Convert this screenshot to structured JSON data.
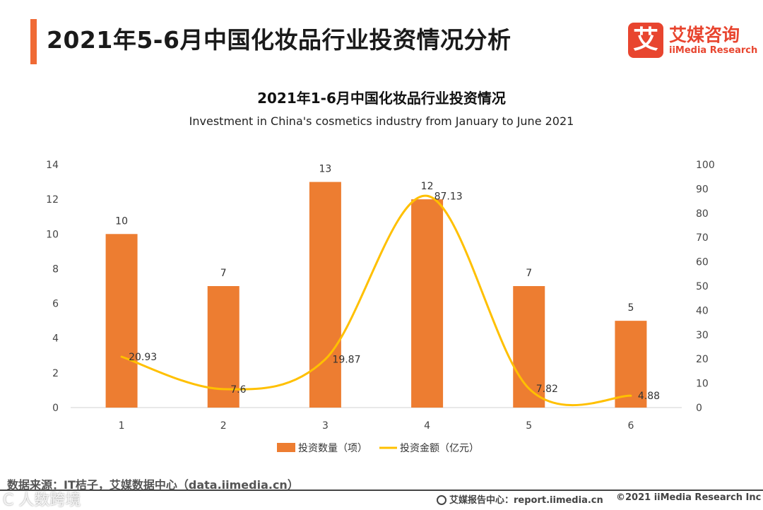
{
  "page": {
    "title": "2021年5-6月中国化妆品行业投资情况分析",
    "accent_color": "#F06A35"
  },
  "logo": {
    "mark": "艾",
    "name_cn": "艾媒咨询",
    "name_en": "iiMedia Research",
    "color": "#E8452F"
  },
  "chart_data": {
    "type": "bar",
    "title": "2021年1-6月中国化妆品行业投资情况",
    "subtitle": "Investment in China's cosmetics industry from January to June 2021",
    "categories": [
      "1",
      "2",
      "3",
      "4",
      "5",
      "6"
    ],
    "left_axis": {
      "min": 0,
      "max": 14,
      "ticks": [
        "0",
        "2",
        "4",
        "6",
        "8",
        "10",
        "12",
        "14"
      ]
    },
    "right_axis": {
      "min": 0,
      "max": 100,
      "ticks": [
        "0",
        "10",
        "20",
        "30",
        "40",
        "50",
        "60",
        "70",
        "80",
        "90",
        "100"
      ]
    },
    "series": [
      {
        "name": "投资数量（项）",
        "type": "bar",
        "axis": "left",
        "color": "#ED7D31",
        "values": [
          10,
          7,
          13,
          12,
          7,
          5
        ],
        "labels": [
          "10",
          "7",
          "13",
          "12",
          "7",
          "5"
        ]
      },
      {
        "name": "投资金额（亿元）",
        "type": "line",
        "axis": "right",
        "color": "#FFC000",
        "values": [
          20.93,
          7.6,
          19.87,
          87.13,
          7.82,
          4.88
        ],
        "labels": [
          "20.93",
          "7.6",
          "19.87",
          "87.13",
          "7.82",
          "4.88"
        ]
      }
    ],
    "legend_position": "bottom"
  },
  "footer": {
    "source": "数据来源：IT桔子，艾媒数据中心（data.iimedia.cn）",
    "report": "艾媒报告中心：report.iimedia.cn",
    "copyright": "©2021  iiMedia Research  Inc",
    "watermark": "C 人数跨境"
  }
}
